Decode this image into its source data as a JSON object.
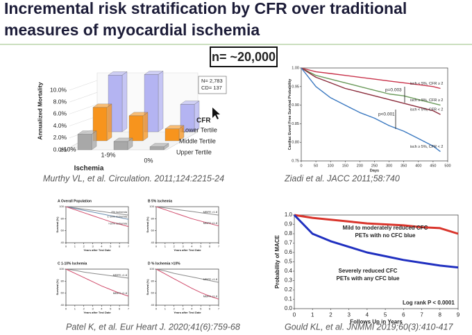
{
  "header": {
    "title_lines": [
      "Incremental risk stratification by CFR over traditional",
      "measures of myocardial ischemia"
    ]
  },
  "callout": "n= ~20,000",
  "panels": {
    "murthy": {
      "type": "bar3d",
      "caption": "Murthy VL, et al. Circulation. 2011;124:2215-24",
      "ylabel": "Annualized Mortality",
      "xlabel": "Ischemia",
      "legend_title": "CFR",
      "note_lines": [
        "N= 2,783",
        "CD= 137"
      ],
      "categories": [
        "≥10%",
        "1-9%",
        "0%"
      ],
      "ylim": [
        0,
        10
      ],
      "yticks": [
        {
          "value": 0,
          "label": "0.0%"
        },
        {
          "value": 2,
          "label": "2.0%"
        },
        {
          "value": 4,
          "label": "4.0%"
        },
        {
          "value": 6,
          "label": "6.0%"
        },
        {
          "value": 8,
          "label": "8.0%"
        },
        {
          "value": 10,
          "label": "10.0%"
        }
      ],
      "series": [
        {
          "name": "Lower Tertile",
          "color": "#b4b4f2",
          "values": [
            9.5,
            9.6,
            4.6
          ]
        },
        {
          "name": "Middle Tertile",
          "color": "#f7941d",
          "values": [
            5.6,
            4.2,
            2.0
          ]
        },
        {
          "name": "Upper Tertile",
          "color": "#a8a8a8",
          "values": [
            2.6,
            1.4,
            0.5
          ]
        }
      ]
    },
    "ziadi": {
      "type": "line",
      "caption": "Ziadi et al. JACC 2011;58:740",
      "xlabel": "Days",
      "ylabel": "Cardiac Event Free Survival Probability",
      "annotations": [
        "p=0.003",
        "p<0.001"
      ],
      "x": [
        0,
        50,
        100,
        150,
        200,
        250,
        300,
        350,
        400,
        450,
        475
      ],
      "xlim": [
        0,
        500
      ],
      "xticks": [
        0,
        50,
        100,
        150,
        200,
        250,
        300,
        350,
        400,
        450,
        500
      ],
      "ylim": [
        0.75,
        1.0
      ],
      "yticks": [
        {
          "value": 0.75,
          "label": "0.75"
        },
        {
          "value": 0.8,
          "label": "0.80"
        },
        {
          "value": 0.85,
          "label": "0.85"
        },
        {
          "value": 0.9,
          "label": "0.90"
        },
        {
          "value": 0.95,
          "label": "0.95"
        },
        {
          "value": 1.0,
          "label": "1.00"
        }
      ],
      "series": [
        {
          "name": "isch < 5%, CFR ≥ 2",
          "color": "#c8324a",
          "values": [
            1,
            0.99,
            0.985,
            0.98,
            0.975,
            0.97,
            0.965,
            0.96,
            0.955,
            0.95,
            0.945
          ]
        },
        {
          "name": "isch ≥ 5%, CFR ≥ 2",
          "color": "#6a9a5a",
          "values": [
            1,
            0.98,
            0.97,
            0.96,
            0.95,
            0.94,
            0.93,
            0.925,
            0.915,
            0.905,
            0.9
          ]
        },
        {
          "name": "isch < 5%, CFR < 2",
          "color": "#8a2a3a",
          "values": [
            1,
            0.975,
            0.96,
            0.945,
            0.935,
            0.925,
            0.915,
            0.905,
            0.895,
            0.885,
            0.875
          ]
        },
        {
          "name": "isch ≥ 5%, CFR < 2",
          "color": "#3a78c0",
          "values": [
            1,
            0.95,
            0.92,
            0.9,
            0.88,
            0.865,
            0.845,
            0.83,
            0.81,
            0.79,
            0.775
          ]
        }
      ]
    },
    "patel": {
      "caption": "Patel K, et al. Eur Heart J. 2020;41(6):759-68",
      "subplots": [
        {
          "type": "line",
          "title": "A Overall Population",
          "xlabel": "Years after Test Date",
          "ylabel": "Survival (%)",
          "x": [
            0,
            1,
            2,
            3,
            4,
            5,
            6,
            7
          ],
          "xlim": [
            0,
            7
          ],
          "xticks": [
            0,
            1,
            2,
            3,
            4,
            5,
            6,
            7
          ],
          "ylim": [
            40,
            100
          ],
          "yticks": [
            40,
            60,
            80,
            100
          ],
          "series": [
            {
              "name": "0% ischemia",
              "color": "#8a8a8a",
              "values": [
                100,
                98,
                96,
                94,
                92,
                90,
                88,
                86
              ]
            },
            {
              "name": "1-10% ischemia",
              "color": "#6a8caf",
              "values": [
                100,
                97,
                94,
                91,
                88,
                85,
                82,
                79
              ]
            },
            {
              "name": ">10% ischemia",
              "color": "#d04a6a",
              "values": [
                100,
                95,
                90,
                85,
                80,
                75,
                71,
                67
              ]
            }
          ]
        },
        {
          "type": "line",
          "title": "B 5% ischemia",
          "xlabel": "Years after Test Date",
          "ylabel": "Survival (%)",
          "x": [
            0,
            1,
            2,
            3,
            4,
            5,
            6,
            7
          ],
          "xlim": [
            0,
            7
          ],
          "xticks": [
            0,
            1,
            2,
            3,
            4,
            5,
            6,
            7
          ],
          "ylim": [
            40,
            100
          ],
          "yticks": [
            40,
            60,
            80,
            100
          ],
          "series": [
            {
              "name": "MBFR >1.8",
              "color": "#8a8a8a",
              "values": [
                100,
                98,
                96,
                94,
                92,
                90,
                88,
                86
              ]
            },
            {
              "name": "MBFR ≤1.8",
              "color": "#d04a6a",
              "values": [
                100,
                95,
                90,
                85,
                80,
                76,
                72,
                68
              ]
            }
          ]
        },
        {
          "type": "line",
          "title": "C 1-10% Ischemia",
          "xlabel": "Years after Test Date",
          "ylabel": "Survival (%)",
          "x": [
            0,
            1,
            2,
            3,
            4,
            5,
            6,
            7
          ],
          "xlim": [
            0,
            7
          ],
          "xticks": [
            0,
            1,
            2,
            3,
            4,
            5,
            6,
            7
          ],
          "ylim": [
            40,
            100
          ],
          "yticks": [
            40,
            60,
            80,
            100
          ],
          "series": [
            {
              "name": "MBFR >1.8",
              "color": "#8a8a8a",
              "values": [
                100,
                98,
                95,
                93,
                91,
                89,
                87,
                85
              ]
            },
            {
              "name": "MBFR ≤1.8",
              "color": "#d04a6a",
              "values": [
                100,
                93,
                86,
                79,
                72,
                66,
                60,
                55
              ]
            }
          ]
        },
        {
          "type": "line",
          "title": "D % Ischemia >10%",
          "xlabel": "Years after Test Date",
          "ylabel": "Survival (%)",
          "x": [
            0,
            1,
            2,
            3,
            4,
            5,
            6,
            7
          ],
          "xlim": [
            0,
            7
          ],
          "xticks": [
            0,
            1,
            2,
            3,
            4,
            5,
            6,
            7
          ],
          "ylim": [
            40,
            100
          ],
          "yticks": [
            40,
            60,
            80,
            100
          ],
          "series": [
            {
              "name": "MBFR >1.8",
              "color": "#8a8a8a",
              "values": [
                100,
                97,
                93,
                90,
                87,
                84,
                81,
                78
              ]
            },
            {
              "name": "MBFR ≤1.8",
              "color": "#d04a6a",
              "values": [
                100,
                92,
                84,
                76,
                68,
                61,
                55,
                50
              ]
            }
          ]
        }
      ]
    },
    "gould": {
      "type": "line",
      "caption": "Gould KL, et al. JNMMI 2019;60(3):410-417",
      "xlabel": "Follows Up in Years",
      "ylabel": "Probability of MACE",
      "annotation_red": [
        "Mild to moderately reduced CFC",
        "PETs with no CFC blue"
      ],
      "annotation_blue": [
        "Severely reduced CFC",
        "PETs with any CFC blue"
      ],
      "annotation_p": "Log rank P < 0.0001",
      "x": [
        0,
        1,
        2,
        3,
        4,
        5,
        6,
        7,
        8,
        9
      ],
      "xlim": [
        0,
        9
      ],
      "xticks": [
        0,
        1,
        2,
        3,
        4,
        5,
        6,
        7,
        8,
        9
      ],
      "ylim": [
        0,
        1.0
      ],
      "yticks": [
        {
          "value": 0,
          "label": "0.0"
        },
        {
          "value": 0.1,
          "label": "0.1"
        },
        {
          "value": 0.2,
          "label": "0.2"
        },
        {
          "value": 0.3,
          "label": "0.3"
        },
        {
          "value": 0.4,
          "label": "0.4"
        },
        {
          "value": 0.5,
          "label": "0.5"
        },
        {
          "value": 0.6,
          "label": "0.6"
        },
        {
          "value": 0.7,
          "label": "0.7"
        },
        {
          "value": 0.8,
          "label": "0.8"
        },
        {
          "value": 0.9,
          "label": "0.9"
        },
        {
          "value": 1.0,
          "label": "1.0"
        }
      ],
      "series": [
        {
          "color": "#d9342b",
          "values": [
            1.0,
            0.97,
            0.95,
            0.93,
            0.91,
            0.9,
            0.89,
            0.87,
            0.86,
            0.8
          ]
        },
        {
          "color": "#2030c0",
          "values": [
            1.0,
            0.8,
            0.72,
            0.66,
            0.6,
            0.56,
            0.52,
            0.49,
            0.46,
            0.44
          ]
        }
      ]
    }
  }
}
